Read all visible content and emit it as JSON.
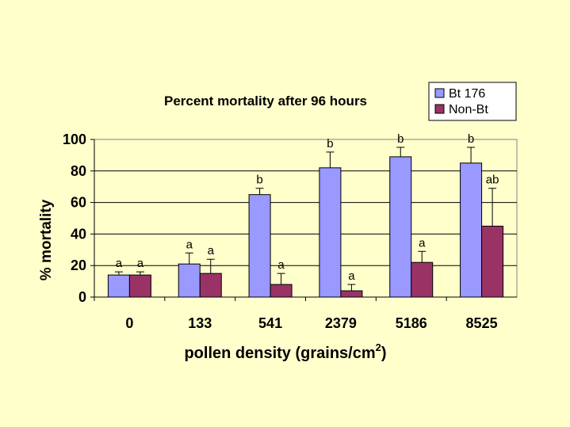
{
  "chart_data": {
    "type": "bar",
    "title": "Percent mortality after 96 hours",
    "xlabel": "pollen density (grains/cm",
    "xlabel_superscript": "2",
    "xlabel_suffix": ")",
    "ylabel": "% mortality",
    "ylim": [
      0,
      100
    ],
    "yticks": [
      "0",
      "20",
      "40",
      "60",
      "80",
      "100"
    ],
    "categories": [
      "0",
      "133",
      "541",
      "2379",
      "5186",
      "8525"
    ],
    "grid": "horizontal",
    "legend_position": "top-right",
    "series": [
      {
        "name": "Bt 176",
        "color": "#9999ff",
        "values": [
          14,
          21,
          65,
          82,
          89,
          85
        ],
        "error_upper": [
          16,
          28,
          69,
          92,
          95,
          95
        ],
        "letters": [
          "a",
          "a",
          "b",
          "b",
          "b",
          "b"
        ]
      },
      {
        "name": "Non-Bt",
        "color": "#993366",
        "values": [
          14,
          15,
          8,
          4,
          22,
          45
        ],
        "error_upper": [
          16,
          24,
          15,
          8,
          29,
          69
        ],
        "letters": [
          "a",
          "a",
          "a",
          "a",
          "a",
          "ab"
        ]
      }
    ]
  }
}
